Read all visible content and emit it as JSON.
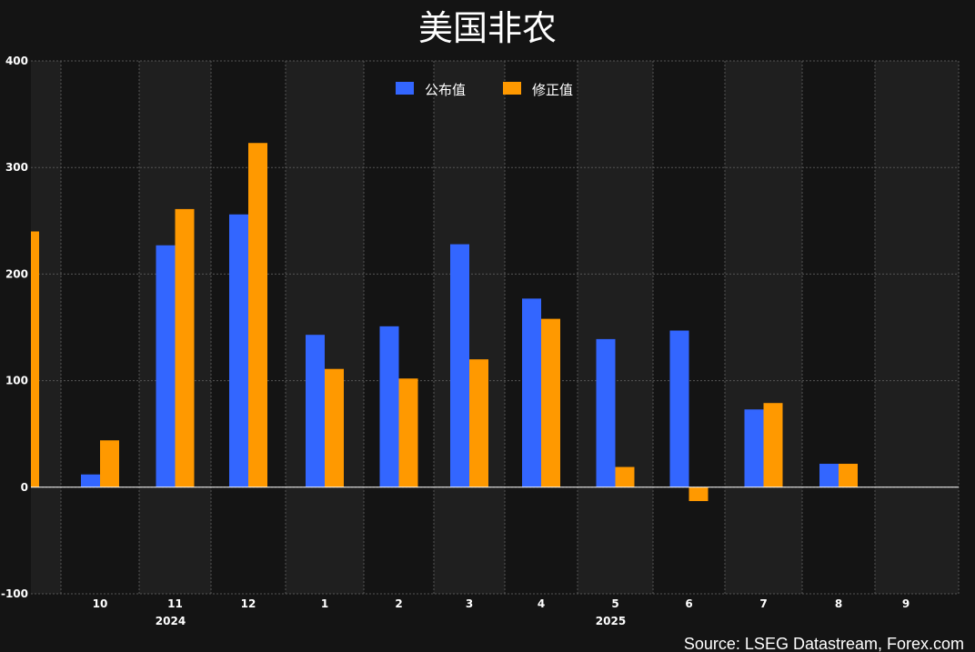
{
  "chart_data": {
    "type": "bar",
    "title": "美国非农",
    "source": "Source: LSEG Datastream, Forex.com",
    "categories": [
      "10",
      "11",
      "12",
      "1",
      "2",
      "3",
      "4",
      "5",
      "6",
      "7",
      "8",
      "9"
    ],
    "year_labels": [
      {
        "label": "2024",
        "after_category": "11"
      },
      {
        "label": "2025",
        "after_category": "5"
      }
    ],
    "series": [
      {
        "name": "公布值",
        "color": "#3366ff",
        "values": [
          12,
          227,
          256,
          143,
          151,
          228,
          177,
          139,
          147,
          73,
          22,
          null
        ]
      },
      {
        "name": "修正值",
        "color": "#ff9900",
        "values": [
          44,
          261,
          323,
          111,
          102,
          120,
          158,
          19,
          -13,
          79,
          22,
          null
        ]
      }
    ],
    "partial_leading_value": {
      "series": "修正值",
      "value": 240
    },
    "yticks": [
      -100,
      0,
      100,
      200,
      300,
      400
    ],
    "ylim": [
      -100,
      400
    ],
    "legend_position": "top-center",
    "grid": true,
    "colors": {
      "background": "#141414",
      "band": "#1f1f1f",
      "grid": "#555555",
      "zero_line": "#ffffff"
    }
  }
}
